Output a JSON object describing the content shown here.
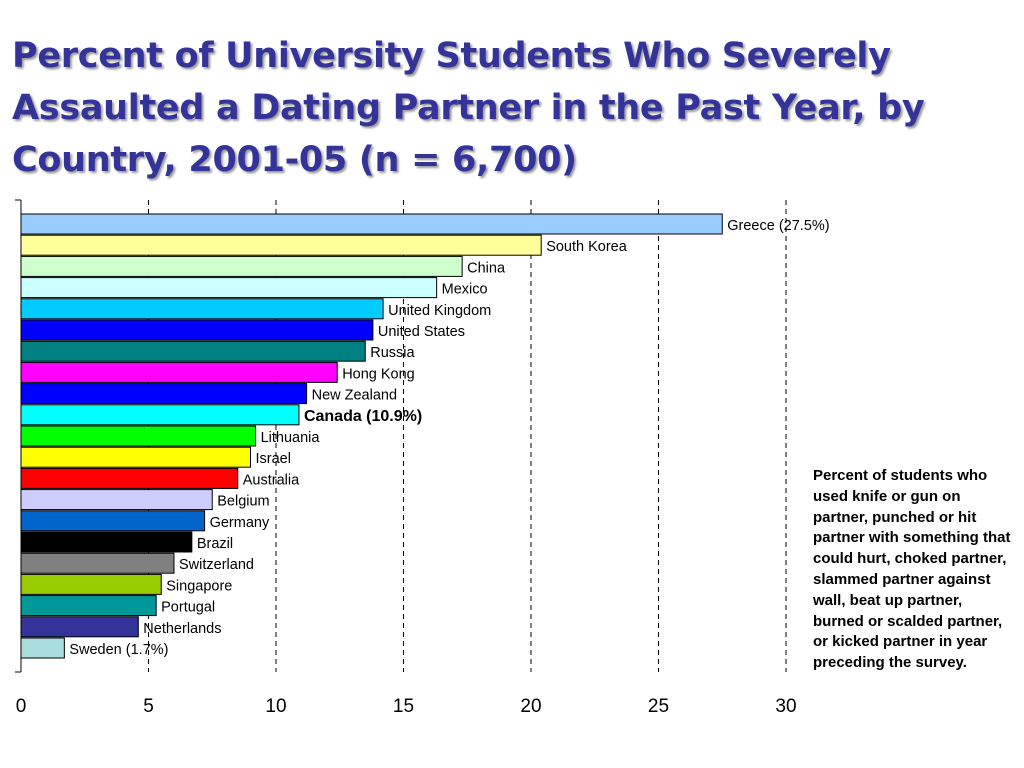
{
  "slide": {
    "title": "Percent of University Students Who Severely Assaulted a Dating Partner in the Past Year, by Country, 2001-05 (n = 6,700)",
    "note": "Percent of students who used knife or gun on partner, punched or hit partner with something that could hurt, choked partner, slammed partner against wall, beat up partner, burned or scalded partner, or kicked partner in year preceding the survey."
  },
  "chart_data": {
    "type": "bar",
    "orientation": "horizontal",
    "title": "",
    "xlabel": "",
    "ylabel": "",
    "xlim": [
      0,
      30
    ],
    "xticks": [
      0,
      5,
      10,
      15,
      20,
      25,
      30
    ],
    "grid": "vertical dashed",
    "categories": [
      "Greece (27.5%)",
      "South Korea",
      "China",
      "Mexico",
      "United Kingdom",
      "United States",
      "Russia",
      "Hong Kong",
      "New Zealand",
      "Canada (10.9%)",
      "Lithuania",
      "Israel",
      "Australia",
      "Belgium",
      "Germany",
      "Brazil",
      "Switzerland",
      "Singapore",
      "Portugal",
      "Netherlands",
      "Sweden (1.7%)"
    ],
    "values": [
      27.5,
      20.4,
      17.3,
      16.3,
      14.2,
      13.8,
      13.5,
      12.4,
      11.2,
      10.9,
      9.2,
      9.0,
      8.5,
      7.5,
      7.2,
      6.7,
      6.0,
      5.5,
      5.3,
      4.6,
      1.7
    ],
    "colors": [
      "#99CCFF",
      "#FFFF99",
      "#CCFFCC",
      "#CCFFFF",
      "#00CCFF",
      "#0000FF",
      "#008080",
      "#FF00FF",
      "#0000FF",
      "#00FFFF",
      "#00FF00",
      "#FFFF00",
      "#FF0000",
      "#CCCCFF",
      "#0066CC",
      "#000000",
      "#808080",
      "#99CC00",
      "#009999",
      "#333399",
      "#AADDDD"
    ],
    "bold_labels": [
      "Canada (10.9%)"
    ]
  }
}
